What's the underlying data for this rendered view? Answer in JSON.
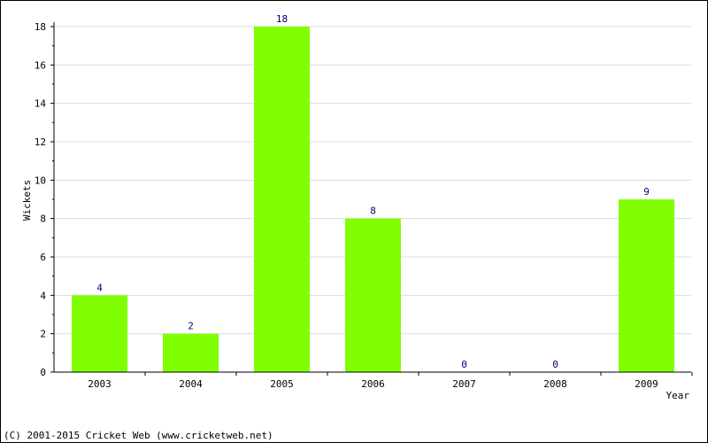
{
  "chart_data": {
    "type": "bar",
    "xlabel": "Year",
    "ylabel": "Wickets",
    "categories": [
      "2003",
      "2004",
      "2005",
      "2006",
      "2007",
      "2008",
      "2009"
    ],
    "values": [
      4,
      2,
      18,
      8,
      0,
      0,
      9
    ],
    "ylim": [
      0,
      18
    ],
    "yticks": [
      0,
      2,
      4,
      6,
      8,
      10,
      12,
      14,
      16,
      18
    ],
    "bar_color": "#80ff00",
    "label_color": "#000080",
    "grid": true,
    "legend": "none"
  },
  "footer": {
    "copyright": "(C) 2001-2015 Cricket Web (www.cricketweb.net)"
  }
}
